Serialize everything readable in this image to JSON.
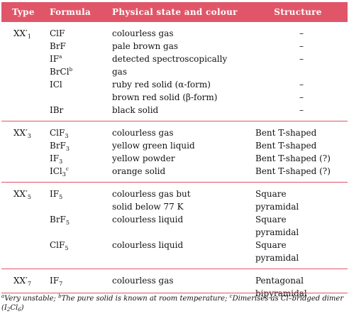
{
  "headers": {
    "type": "Type",
    "formula": "Formula",
    "physical": "Physical state and colour",
    "structure": "Structure"
  },
  "colors": {
    "accent": "#e05668",
    "header_text": "#ffffff"
  },
  "groups": [
    {
      "type": {
        "base": "XX′",
        "sub": "1"
      },
      "rows": [
        {
          "formula": [
            [
              "ClF",
              ""
            ]
          ],
          "sup": "",
          "physical": "colourless gas",
          "structure": "–"
        },
        {
          "formula": [
            [
              "BrF",
              ""
            ]
          ],
          "sup": "",
          "physical": "pale brown gas",
          "structure": "–"
        },
        {
          "formula": [
            [
              "IF",
              ""
            ]
          ],
          "sup": "a",
          "physical": "detected spectroscopically",
          "structure": "–"
        },
        {
          "formula": [
            [
              "BrCl",
              ""
            ]
          ],
          "sup": "b",
          "physical": "gas",
          "structure": ""
        },
        {
          "formula": [
            [
              "ICl",
              ""
            ]
          ],
          "sup": "",
          "physical": "ruby red solid (α-form)",
          "structure": "–"
        },
        {
          "formula": [],
          "sup": "",
          "physical": "brown red solid (β-form)",
          "structure": "–"
        },
        {
          "formula": [
            [
              "IBr",
              ""
            ]
          ],
          "sup": "",
          "physical": "black solid",
          "structure": "–"
        }
      ]
    },
    {
      "type": {
        "base": "XX′",
        "sub": "3"
      },
      "rows": [
        {
          "formula": [
            [
              "ClF",
              "3"
            ]
          ],
          "sup": "",
          "physical": "colourless gas",
          "structure": "Bent T-shaped"
        },
        {
          "formula": [
            [
              "BrF",
              "3"
            ]
          ],
          "sup": "",
          "physical": "yellow green liquid",
          "structure": "Bent T-shaped"
        },
        {
          "formula": [
            [
              "IF",
              "3"
            ]
          ],
          "sup": "",
          "physical": "yellow powder",
          "structure": "Bent T-shaped (?)"
        },
        {
          "formula": [
            [
              "ICl",
              "3"
            ]
          ],
          "sup": "c",
          "physical": "orange solid",
          "structure": "Bent T-shaped (?)"
        }
      ]
    },
    {
      "type": {
        "base": "XX′",
        "sub": "5"
      },
      "rows": [
        {
          "formula": [
            [
              "IF",
              "5"
            ]
          ],
          "sup": "",
          "physical": "colourless gas but",
          "structure": "Square"
        },
        {
          "formula": [],
          "sup": "",
          "physical": "solid below 77 K",
          "structure": "pyramidal"
        },
        {
          "formula": [
            [
              "BrF",
              "5"
            ]
          ],
          "sup": "",
          "physical": "colourless liquid",
          "structure": "Square"
        },
        {
          "formula": [],
          "sup": "",
          "physical": "",
          "structure": "pyramidal"
        },
        {
          "formula": [
            [
              "ClF",
              "5"
            ]
          ],
          "sup": "",
          "physical": "colourless liquid",
          "structure": "Square"
        },
        {
          "formula": [],
          "sup": "",
          "physical": "",
          "structure": "pyramidal"
        }
      ]
    },
    {
      "type": {
        "base": "XX′",
        "sub": "7"
      },
      "rows": [
        {
          "formula": [
            [
              "IF",
              "7"
            ]
          ],
          "sup": "",
          "physical": "colourless gas",
          "structure": "Pentagonal"
        },
        {
          "formula": [],
          "sup": "",
          "physical": "",
          "structure": "bipyramidal"
        }
      ]
    }
  ],
  "footnote": {
    "a_mark": "a",
    "a_text": "Very unstable; ",
    "b_mark": "b",
    "b_text": "The pure solid is known at room temperature; ",
    "c_mark": "c",
    "c_text": "Dimerises as Cl–bridged dimer (",
    "c_formula_1": "I",
    "c_sub_1": "2",
    "c_formula_2": "Cl",
    "c_sub_2": "6",
    "c_close": ")"
  }
}
